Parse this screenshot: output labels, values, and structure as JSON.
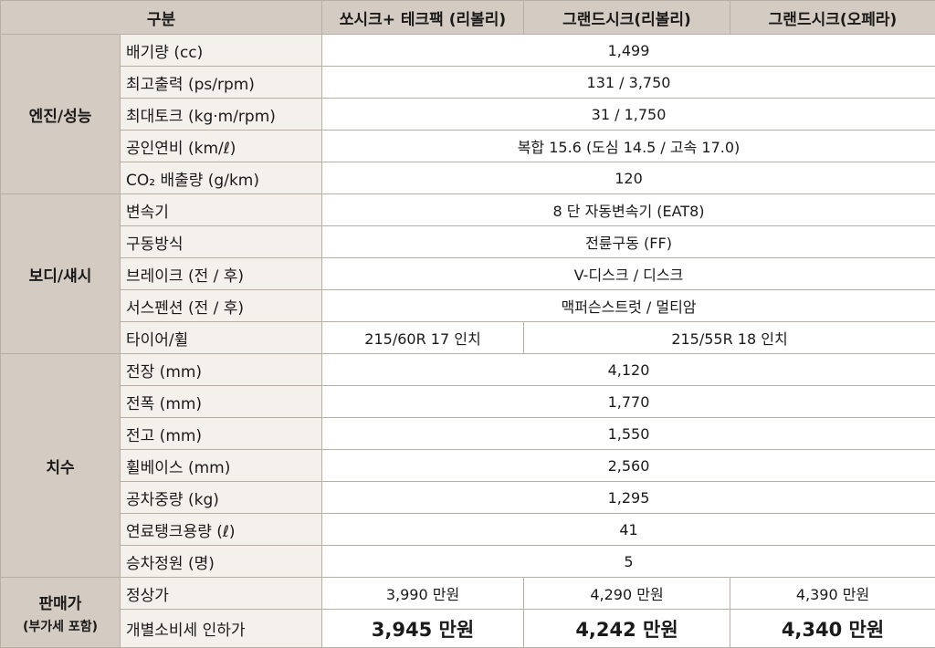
{
  "header": {
    "category": "구분",
    "trim1": "쏘시크+ 테크팩 (리볼리)",
    "trim2": "그랜드시크(리볼리)",
    "trim3": "그랜드시크(오페라)"
  },
  "groups": {
    "engine": "엔진/성능",
    "body": "보디/섀시",
    "dims": "치수",
    "price": "판매가",
    "price_sub": "(부가세 포함)"
  },
  "rows": {
    "displacement": {
      "label": "배기량 (cc)",
      "value": "1,499"
    },
    "power": {
      "label": "최고출력 (ps/rpm)",
      "value": "131 / 3,750"
    },
    "torque": {
      "label": "최대토크 (kg·m/rpm)",
      "value": "31 / 1,750"
    },
    "fuel": {
      "label": "공인연비 (km/ℓ)",
      "value": "복합 15.6 (도심 14.5 / 고속 17.0)"
    },
    "co2": {
      "label": "CO₂ 배출량 (g/km)",
      "value": "120"
    },
    "transmission": {
      "label": "변속기",
      "value": "8 단 자동변속기 (EAT8)"
    },
    "drive": {
      "label": "구동방식",
      "value": "전륜구동 (FF)"
    },
    "brake": {
      "label": "브레이크 (전 / 후)",
      "value": "V-디스크 / 디스크"
    },
    "suspension": {
      "label": "서스펜션 (전 / 후)",
      "value": "맥퍼슨스트럿 / 멀티암"
    },
    "tire": {
      "label": "타이어/휠",
      "value1": "215/60R 17 인치",
      "value23": "215/55R 18 인치"
    },
    "length": {
      "label": "전장 (mm)",
      "value": "4,120"
    },
    "width": {
      "label": "전폭 (mm)",
      "value": "1,770"
    },
    "height": {
      "label": "전고 (mm)",
      "value": "1,550"
    },
    "wheelbase": {
      "label": "휠베이스 (mm)",
      "value": "2,560"
    },
    "weight": {
      "label": "공차중량 (kg)",
      "value": "1,295"
    },
    "tank": {
      "label": "연료탱크용량 (ℓ)",
      "value": "41"
    },
    "seats": {
      "label": "승차정원 (명)",
      "value": "5"
    },
    "list_price": {
      "label": "정상가",
      "values": [
        "3,990 만원",
        "4,290 만원",
        "4,390 만원"
      ]
    },
    "tax_price": {
      "label": "개별소비세 인하가",
      "values": [
        "3,945 만원",
        "4,242 만원",
        "4,340 만원"
      ]
    }
  }
}
